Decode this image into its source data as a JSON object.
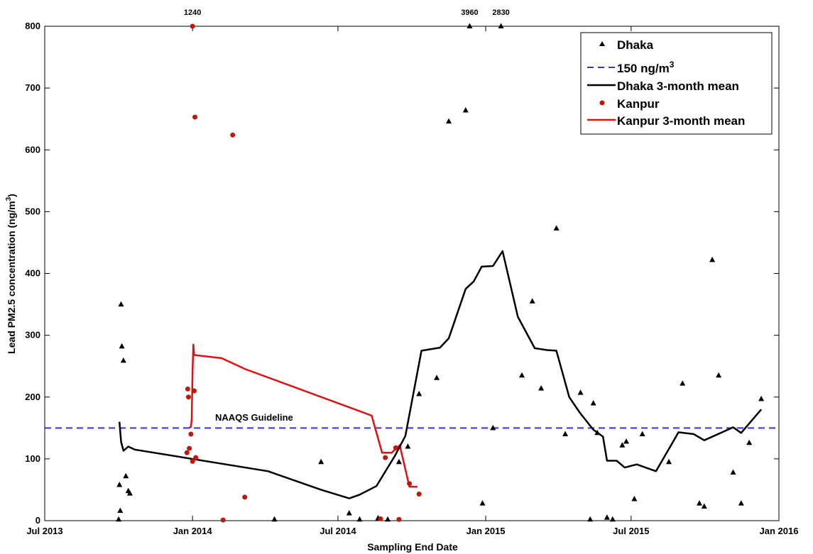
{
  "chart_data": {
    "type": "scatter",
    "xlabel": "Sampling End Date",
    "ylabel_main": "Lead PM2.5 concentration (ng/m",
    "ylabel_sup": "3",
    "ylabel_end": ")",
    "xlim": [
      "2013-07-01",
      "2016-01-01"
    ],
    "ylim": [
      0,
      800
    ],
    "x_tick_dates": [
      "2013-07-01",
      "2014-01-01",
      "2014-07-01",
      "2015-01-01",
      "2015-07-01",
      "2016-01-01"
    ],
    "x_tick_labels": [
      "Jul 2013",
      "Jan 2014",
      "Jul 2014",
      "Jan 2015",
      "Jul 2015",
      "Jan 2016"
    ],
    "y_ticks": [
      0,
      100,
      200,
      300,
      400,
      500,
      600,
      700,
      800
    ],
    "y_tick_labels": [
      "0",
      "100",
      "200",
      "300",
      "400",
      "500",
      "600",
      "700",
      "800"
    ],
    "grid": false,
    "legend_position": "top-right",
    "guideline": {
      "value": 150,
      "color": "#3333dd",
      "label": "NAAQS Guideline"
    },
    "legend": {
      "dhaka": "Dhaka",
      "guideline_main": "150 ng/m",
      "guideline_sup": "3",
      "dhaka_mean": "Dhaka 3-month mean",
      "kanpur": "Kanpur",
      "kanpur_mean": "Kanpur 3-month mean"
    },
    "clipped_annotations": [
      {
        "x": "2014-01-01",
        "label": "1240"
      },
      {
        "x": "2014-12-12",
        "label": "3960"
      },
      {
        "x": "2015-01-20",
        "label": "2830"
      }
    ],
    "colors": {
      "dhaka": "#000000",
      "kanpur": "#c0160b",
      "kanpur_line": "#dd1111",
      "guideline": "#3333dd"
    },
    "series": [
      {
        "name": "Dhaka",
        "kind": "points",
        "marker": "triangle",
        "points": [
          [
            "2013-10-01",
            2
          ],
          [
            "2013-10-02",
            58
          ],
          [
            "2013-10-03",
            16
          ],
          [
            "2013-10-04",
            350
          ],
          [
            "2013-10-05",
            282
          ],
          [
            "2013-10-07",
            259
          ],
          [
            "2013-10-10",
            72
          ],
          [
            "2013-10-13",
            48
          ],
          [
            "2013-10-15",
            44
          ],
          [
            "2014-04-13",
            2
          ],
          [
            "2014-06-10",
            95
          ],
          [
            "2014-07-15",
            12
          ],
          [
            "2014-07-28",
            2
          ],
          [
            "2014-08-20",
            4
          ],
          [
            "2014-09-01",
            2
          ],
          [
            "2014-09-15",
            95
          ],
          [
            "2014-09-26",
            120
          ],
          [
            "2014-10-10",
            205
          ],
          [
            "2014-11-01",
            231
          ],
          [
            "2014-11-16",
            646
          ],
          [
            "2014-12-07",
            664
          ],
          [
            "2014-12-28",
            28
          ],
          [
            "2015-01-10",
            150
          ],
          [
            "2015-02-15",
            235
          ],
          [
            "2015-02-28",
            355
          ],
          [
            "2015-03-11",
            214
          ],
          [
            "2015-03-30",
            473
          ],
          [
            "2015-04-10",
            140
          ],
          [
            "2015-04-29",
            207
          ],
          [
            "2015-05-11",
            2
          ],
          [
            "2015-05-15",
            190
          ],
          [
            "2015-05-20",
            142
          ],
          [
            "2015-06-01",
            5
          ],
          [
            "2015-06-08",
            2
          ],
          [
            "2015-06-20",
            122
          ],
          [
            "2015-06-25",
            128
          ],
          [
            "2015-07-05",
            35
          ],
          [
            "2015-07-15",
            140
          ],
          [
            "2015-08-17",
            95
          ],
          [
            "2015-09-03",
            222
          ],
          [
            "2015-09-24",
            28
          ],
          [
            "2015-09-30",
            23
          ],
          [
            "2015-10-10",
            422
          ],
          [
            "2015-10-18",
            235
          ],
          [
            "2015-11-05",
            78
          ],
          [
            "2015-11-15",
            28
          ],
          [
            "2015-11-25",
            126
          ],
          [
            "2015-12-10",
            197
          ]
        ]
      },
      {
        "name": "Kanpur",
        "kind": "points",
        "marker": "circle",
        "points": [
          [
            "2013-12-25",
            110
          ],
          [
            "2013-12-26",
            213
          ],
          [
            "2013-12-27",
            200
          ],
          [
            "2013-12-28",
            117
          ],
          [
            "2013-12-30",
            140
          ],
          [
            "2014-01-01",
            96
          ],
          [
            "2014-01-03",
            210
          ],
          [
            "2014-01-04",
            653
          ],
          [
            "2014-01-05",
            102
          ],
          [
            "2014-02-08",
            1
          ],
          [
            "2014-02-20",
            624
          ],
          [
            "2014-03-07",
            38
          ],
          [
            "2014-08-23",
            3
          ],
          [
            "2014-08-29",
            102
          ],
          [
            "2014-09-11",
            118
          ],
          [
            "2014-09-15",
            2
          ],
          [
            "2014-09-28",
            60
          ],
          [
            "2014-10-10",
            43
          ]
        ]
      },
      {
        "name": "Dhaka 3-month mean",
        "kind": "line",
        "points": [
          [
            "2013-10-02",
            160
          ],
          [
            "2013-10-04",
            128
          ],
          [
            "2013-10-07",
            113
          ],
          [
            "2013-10-13",
            120
          ],
          [
            "2013-10-21",
            115
          ],
          [
            "2014-04-05",
            80
          ],
          [
            "2014-06-10",
            50
          ],
          [
            "2014-07-15",
            36
          ],
          [
            "2014-07-28",
            42
          ],
          [
            "2014-08-18",
            56
          ],
          [
            "2014-09-10",
            105
          ],
          [
            "2014-09-23",
            137
          ],
          [
            "2014-10-13",
            275
          ],
          [
            "2014-11-05",
            280
          ],
          [
            "2014-11-16",
            295
          ],
          [
            "2014-12-07",
            375
          ],
          [
            "2014-12-17",
            387
          ],
          [
            "2014-12-27",
            411
          ],
          [
            "2015-01-10",
            412
          ],
          [
            "2015-01-22",
            436
          ],
          [
            "2015-02-10",
            330
          ],
          [
            "2015-03-03",
            279
          ],
          [
            "2015-03-18",
            276
          ],
          [
            "2015-03-30",
            275
          ],
          [
            "2015-04-15",
            200
          ],
          [
            "2015-04-28",
            175
          ],
          [
            "2015-05-15",
            147
          ],
          [
            "2015-05-27",
            136
          ],
          [
            "2015-06-01",
            97
          ],
          [
            "2015-06-13",
            97
          ],
          [
            "2015-06-23",
            86
          ],
          [
            "2015-07-08",
            91
          ],
          [
            "2015-08-01",
            80
          ],
          [
            "2015-08-29",
            143
          ],
          [
            "2015-09-17",
            140
          ],
          [
            "2015-09-30",
            130
          ],
          [
            "2015-11-05",
            151
          ],
          [
            "2015-11-15",
            142
          ],
          [
            "2015-12-10",
            180
          ]
        ]
      },
      {
        "name": "Kanpur 3-month mean",
        "kind": "line",
        "points": [
          [
            "2013-12-28",
            150
          ],
          [
            "2013-12-30",
            152
          ],
          [
            "2013-12-31",
            165
          ],
          [
            "2014-01-01",
            242
          ],
          [
            "2014-01-02",
            285
          ],
          [
            "2014-01-03",
            268
          ],
          [
            "2014-02-06",
            263
          ],
          [
            "2014-03-08",
            245
          ],
          [
            "2014-08-12",
            170
          ],
          [
            "2014-08-25",
            110
          ],
          [
            "2014-09-06",
            110
          ],
          [
            "2014-09-16",
            122
          ],
          [
            "2014-09-28",
            55
          ],
          [
            "2014-10-08",
            55
          ]
        ]
      }
    ]
  }
}
